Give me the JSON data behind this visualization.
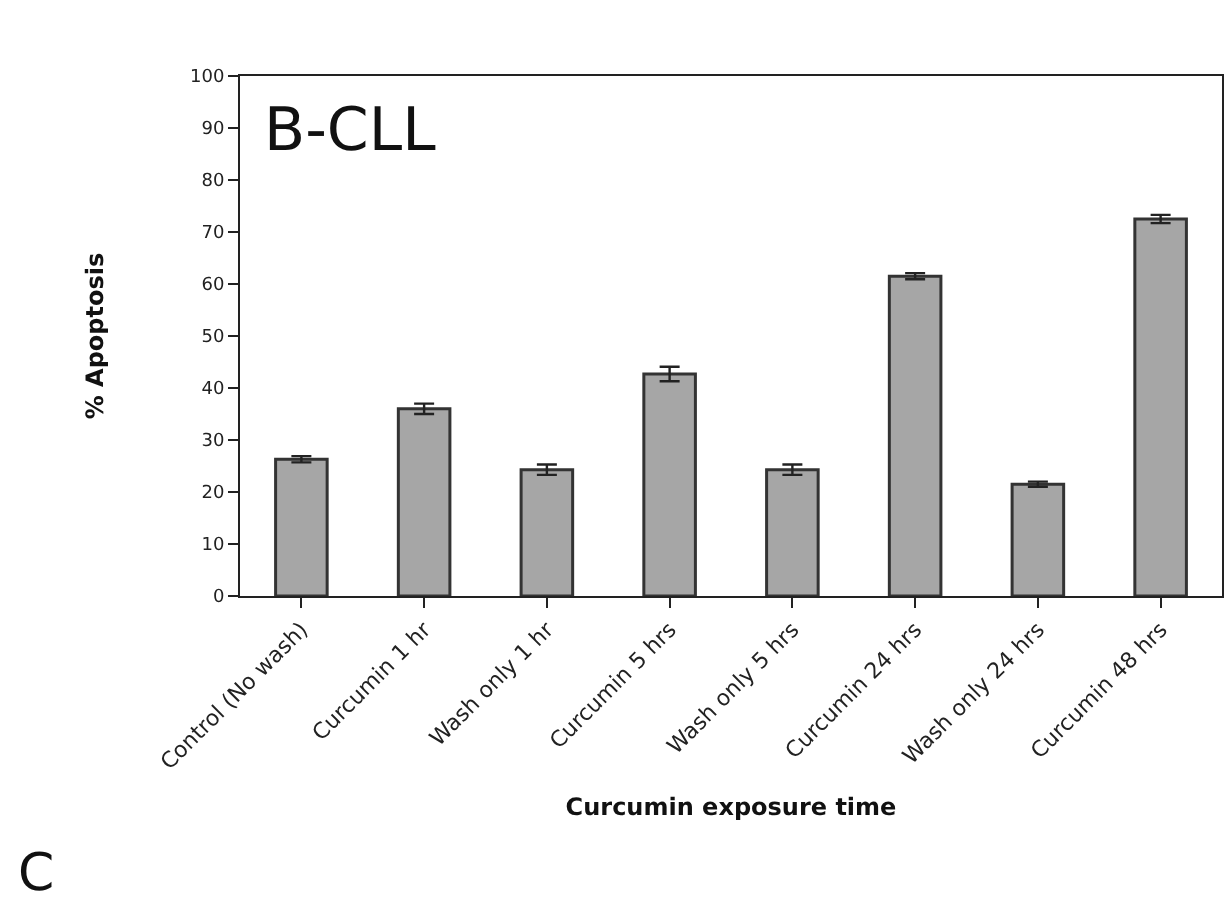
{
  "chart_data": {
    "type": "bar",
    "xlabel": "Curcumin exposure time",
    "ylabel": "% Apoptosis",
    "categories": [
      "Control (No wash)",
      "Curcumin 1 hr",
      "Wash only 1 hr",
      "Curcumin 5 hrs",
      "Wash only 5 hrs",
      "Curcumin 24 hrs",
      "Wash only 24 hrs",
      "Curcumin 48 hrs"
    ],
    "values": [
      26.3,
      36,
      24.3,
      42.7,
      24.3,
      61.5,
      21.5,
      72.5
    ],
    "errors": [
      0.6,
      1,
      1,
      1.4,
      1,
      0.6,
      0.5,
      0.8
    ],
    "color": "#a6a6a6",
    "ylim": [
      0,
      100
    ],
    "yticks": [
      0,
      10,
      20,
      30,
      40,
      50,
      60,
      70,
      80,
      90,
      100
    ],
    "grid": false,
    "annotations": [
      "B-CLL",
      "C"
    ]
  }
}
